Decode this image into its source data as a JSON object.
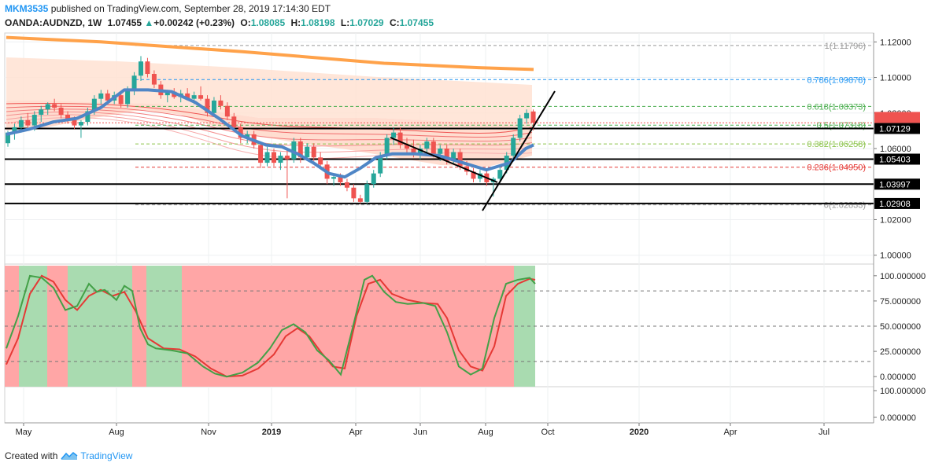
{
  "header": {
    "author": "MKM3535",
    "published_text": "published on TradingView.com, September 28, 2019 17:14:30 EDT",
    "symbol": "OANDA:AUDNZD, 1W",
    "last": "1.07455",
    "change_arrow": "▲",
    "change": "+0.00242 (+0.23%)",
    "o_label": "O:",
    "o": "1.08085",
    "h_label": "H:",
    "h": "1.08198",
    "l_label": "L:",
    "l": "1.07029",
    "c_label": "C:",
    "c": "1.07455"
  },
  "footer": {
    "created_with": "Created with",
    "brand": "TradingView",
    "logo_icon": "tradingview-logo-icon"
  },
  "colors": {
    "up": "#26a69a",
    "down": "#ef5350",
    "ema_blue": "#4f86c6",
    "ma_orange": "#ffa24a",
    "bull_zone": "#a9dbb0",
    "bear_zone": "#ffa6a6",
    "fill_peach": "#ffe2d2"
  },
  "price_axis": {
    "ticks": [
      "1.12000",
      "1.10000",
      "1.08000",
      "1.06000",
      "1.02000",
      "1.00000"
    ],
    "badges": [
      {
        "text": "1.07129",
        "bg": "#000000"
      },
      {
        "text": "1.05403",
        "bg": "#000000"
      },
      {
        "text": "1.03997",
        "bg": "#000000"
      },
      {
        "text": "1.02908",
        "bg": "#000000"
      },
      {
        "text": "",
        "bg": "#ef5350"
      }
    ]
  },
  "osc_axis": {
    "ticks": [
      "100.000000",
      "75.000000",
      "50.000000",
      "25.000000",
      "0.000000"
    ],
    "lower_ticks": [
      "100.000000",
      "0.000000"
    ]
  },
  "time_axis": {
    "labels": [
      "May",
      "Aug",
      "Nov",
      "2019",
      "Apr",
      "Jun",
      "Aug",
      "Oct",
      "2020",
      "Apr",
      "Jul"
    ],
    "bold": [
      "2019",
      "2020"
    ]
  },
  "fib_levels": [
    {
      "label": "1(1.11796)",
      "color": "#999999"
    },
    {
      "label": "0.786(1.09878)",
      "color": "#2196f3"
    },
    {
      "label": "0.618(1.08373)",
      "color": "#4caf50"
    },
    {
      "label": "0.5(1.07318)",
      "color": "#4caf50"
    },
    {
      "label": "0.382(1.06258)",
      "color": "#8bc34a"
    },
    {
      "label": "0.236(1.04950)",
      "color": "#e53935"
    },
    {
      "label": "0(1.02833)",
      "color": "#999999"
    }
  ],
  "chart_data": {
    "type": "candlestick",
    "symbol": "OANDA:AUDNZD",
    "interval": "1W",
    "ylim": [
      0.995,
      1.125
    ],
    "candles_ohlc": [
      [
        1.063,
        1.07,
        1.061,
        1.069
      ],
      [
        1.069,
        1.074,
        1.065,
        1.072
      ],
      [
        1.072,
        1.078,
        1.069,
        1.076
      ],
      [
        1.076,
        1.08,
        1.071,
        1.073
      ],
      [
        1.073,
        1.081,
        1.07,
        1.079
      ],
      [
        1.079,
        1.084,
        1.075,
        1.082
      ],
      [
        1.082,
        1.086,
        1.079,
        1.085
      ],
      [
        1.085,
        1.088,
        1.081,
        1.083
      ],
      [
        1.083,
        1.085,
        1.077,
        1.079
      ],
      [
        1.079,
        1.081,
        1.074,
        1.076
      ],
      [
        1.076,
        1.078,
        1.071,
        1.073
      ],
      [
        1.073,
        1.076,
        1.066,
        1.075
      ],
      [
        1.075,
        1.083,
        1.073,
        1.081
      ],
      [
        1.081,
        1.09,
        1.079,
        1.088
      ],
      [
        1.088,
        1.093,
        1.085,
        1.091
      ],
      [
        1.091,
        1.093,
        1.086,
        1.087
      ],
      [
        1.087,
        1.092,
        1.085,
        1.09
      ],
      [
        1.09,
        1.092,
        1.083,
        1.085
      ],
      [
        1.085,
        1.095,
        1.083,
        1.093
      ],
      [
        1.093,
        1.103,
        1.09,
        1.101
      ],
      [
        1.101,
        1.112,
        1.098,
        1.109
      ],
      [
        1.109,
        1.111,
        1.1,
        1.102
      ],
      [
        1.102,
        1.104,
        1.094,
        1.096
      ],
      [
        1.096,
        1.098,
        1.088,
        1.09
      ],
      [
        1.09,
        1.093,
        1.086,
        1.092
      ],
      [
        1.092,
        1.094,
        1.088,
        1.089
      ],
      [
        1.089,
        1.093,
        1.086,
        1.091
      ],
      [
        1.091,
        1.094,
        1.087,
        1.088
      ],
      [
        1.088,
        1.092,
        1.085,
        1.09
      ],
      [
        1.09,
        1.095,
        1.087,
        1.088
      ],
      [
        1.088,
        1.09,
        1.078,
        1.08
      ],
      [
        1.08,
        1.089,
        1.078,
        1.087
      ],
      [
        1.087,
        1.09,
        1.082,
        1.084
      ],
      [
        1.084,
        1.086,
        1.076,
        1.078
      ],
      [
        1.078,
        1.08,
        1.07,
        1.072
      ],
      [
        1.072,
        1.074,
        1.063,
        1.066
      ],
      [
        1.066,
        1.07,
        1.063,
        1.068
      ],
      [
        1.068,
        1.07,
        1.06,
        1.062
      ],
      [
        1.062,
        1.064,
        1.049,
        1.052
      ],
      [
        1.052,
        1.061,
        1.05,
        1.058
      ],
      [
        1.058,
        1.06,
        1.05,
        1.052
      ],
      [
        1.052,
        1.058,
        1.048,
        1.056
      ],
      [
        1.056,
        1.059,
        1.032,
        1.054
      ],
      [
        1.054,
        1.066,
        1.052,
        1.064
      ],
      [
        1.064,
        1.066,
        1.052,
        1.055
      ],
      [
        1.055,
        1.063,
        1.053,
        1.061
      ],
      [
        1.061,
        1.063,
        1.053,
        1.055
      ],
      [
        1.055,
        1.058,
        1.049,
        1.051
      ],
      [
        1.051,
        1.053,
        1.04,
        1.043
      ],
      [
        1.043,
        1.046,
        1.039,
        1.044
      ],
      [
        1.044,
        1.046,
        1.039,
        1.041
      ],
      [
        1.041,
        1.043,
        1.036,
        1.038
      ],
      [
        1.038,
        1.04,
        1.03,
        1.032
      ],
      [
        1.032,
        1.034,
        1.029,
        1.03
      ],
      [
        1.03,
        1.042,
        1.029,
        1.04
      ],
      [
        1.04,
        1.048,
        1.038,
        1.046
      ],
      [
        1.046,
        1.058,
        1.044,
        1.056
      ],
      [
        1.056,
        1.068,
        1.054,
        1.066
      ],
      [
        1.066,
        1.072,
        1.062,
        1.069
      ],
      [
        1.069,
        1.072,
        1.06,
        1.062
      ],
      [
        1.062,
        1.066,
        1.057,
        1.06
      ],
      [
        1.06,
        1.065,
        1.055,
        1.057
      ],
      [
        1.057,
        1.062,
        1.054,
        1.06
      ],
      [
        1.06,
        1.066,
        1.058,
        1.064
      ],
      [
        1.064,
        1.066,
        1.055,
        1.057
      ],
      [
        1.057,
        1.062,
        1.053,
        1.06
      ],
      [
        1.06,
        1.062,
        1.051,
        1.053
      ],
      [
        1.053,
        1.06,
        1.051,
        1.058
      ],
      [
        1.058,
        1.06,
        1.048,
        1.05
      ],
      [
        1.05,
        1.053,
        1.045,
        1.047
      ],
      [
        1.047,
        1.049,
        1.041,
        1.043
      ],
      [
        1.043,
        1.048,
        1.041,
        1.046
      ],
      [
        1.046,
        1.048,
        1.039,
        1.041
      ],
      [
        1.041,
        1.044,
        1.033,
        1.043
      ],
      [
        1.043,
        1.05,
        1.041,
        1.048
      ],
      [
        1.048,
        1.058,
        1.046,
        1.056
      ],
      [
        1.056,
        1.068,
        1.054,
        1.066
      ],
      [
        1.066,
        1.079,
        1.064,
        1.077
      ],
      [
        1.077,
        1.082,
        1.074,
        1.08
      ],
      [
        1.08085,
        1.08198,
        1.07029,
        1.07455
      ]
    ],
    "ma_orange": [
      [
        0,
        1.1225
      ],
      [
        120,
        1.12
      ],
      [
        300,
        1.1145
      ],
      [
        480,
        1.108
      ],
      [
        600,
        1.1055
      ],
      [
        670,
        1.1045
      ]
    ],
    "ema_blue": [
      [
        0,
        1.068
      ],
      [
        30,
        1.071
      ],
      [
        60,
        1.075
      ],
      [
        90,
        1.077
      ],
      [
        120,
        1.083
      ],
      [
        150,
        1.093
      ],
      [
        180,
        1.093
      ],
      [
        210,
        1.092
      ],
      [
        240,
        1.086
      ],
      [
        270,
        1.077
      ],
      [
        300,
        1.067
      ],
      [
        330,
        1.062
      ],
      [
        350,
        1.061
      ],
      [
        370,
        1.057
      ],
      [
        390,
        1.052
      ],
      [
        410,
        1.046
      ],
      [
        430,
        1.044
      ],
      [
        450,
        1.049
      ],
      [
        470,
        1.055
      ],
      [
        490,
        1.057
      ],
      [
        520,
        1.057
      ],
      [
        550,
        1.056
      ],
      [
        580,
        1.052
      ],
      [
        610,
        1.048
      ],
      [
        640,
        1.052
      ],
      [
        660,
        1.06
      ],
      [
        670,
        1.062
      ]
    ],
    "stoch_k": [
      [
        0,
        28
      ],
      [
        15,
        60
      ],
      [
        30,
        100
      ],
      [
        45,
        98
      ],
      [
        60,
        88
      ],
      [
        75,
        66
      ],
      [
        90,
        70
      ],
      [
        105,
        92
      ],
      [
        115,
        84
      ],
      [
        125,
        86
      ],
      [
        140,
        76
      ],
      [
        150,
        90
      ],
      [
        160,
        85
      ],
      [
        170,
        48
      ],
      [
        180,
        32
      ],
      [
        190,
        28
      ],
      [
        210,
        26
      ],
      [
        230,
        23
      ],
      [
        250,
        10
      ],
      [
        265,
        3
      ],
      [
        280,
        0
      ],
      [
        300,
        4
      ],
      [
        320,
        14
      ],
      [
        335,
        28
      ],
      [
        350,
        46
      ],
      [
        365,
        52
      ],
      [
        380,
        44
      ],
      [
        395,
        26
      ],
      [
        410,
        16
      ],
      [
        425,
        2
      ],
      [
        440,
        48
      ],
      [
        455,
        96
      ],
      [
        465,
        100
      ],
      [
        480,
        84
      ],
      [
        495,
        74
      ],
      [
        510,
        72
      ],
      [
        530,
        73
      ],
      [
        545,
        70
      ],
      [
        560,
        44
      ],
      [
        575,
        10
      ],
      [
        590,
        2
      ],
      [
        605,
        8
      ],
      [
        620,
        58
      ],
      [
        635,
        92
      ],
      [
        650,
        96
      ],
      [
        665,
        98
      ],
      [
        672,
        92
      ]
    ],
    "stoch_d": [
      [
        0,
        12
      ],
      [
        15,
        38
      ],
      [
        30,
        82
      ],
      [
        45,
        100
      ],
      [
        60,
        94
      ],
      [
        75,
        76
      ],
      [
        90,
        66
      ],
      [
        105,
        80
      ],
      [
        120,
        86
      ],
      [
        135,
        80
      ],
      [
        150,
        84
      ],
      [
        165,
        64
      ],
      [
        180,
        38
      ],
      [
        200,
        28
      ],
      [
        220,
        27
      ],
      [
        240,
        20
      ],
      [
        260,
        8
      ],
      [
        280,
        0
      ],
      [
        300,
        1
      ],
      [
        320,
        8
      ],
      [
        340,
        22
      ],
      [
        355,
        40
      ],
      [
        370,
        48
      ],
      [
        385,
        40
      ],
      [
        400,
        24
      ],
      [
        415,
        10
      ],
      [
        430,
        8
      ],
      [
        445,
        60
      ],
      [
        460,
        92
      ],
      [
        475,
        96
      ],
      [
        490,
        82
      ],
      [
        510,
        76
      ],
      [
        530,
        73
      ],
      [
        548,
        72
      ],
      [
        560,
        58
      ],
      [
        575,
        26
      ],
      [
        590,
        10
      ],
      [
        605,
        6
      ],
      [
        620,
        30
      ],
      [
        635,
        80
      ],
      [
        650,
        92
      ],
      [
        665,
        97
      ],
      [
        672,
        96
      ]
    ],
    "osc_ylim": [
      -10,
      110
    ],
    "osc_levels": [
      85,
      50,
      15
    ]
  }
}
